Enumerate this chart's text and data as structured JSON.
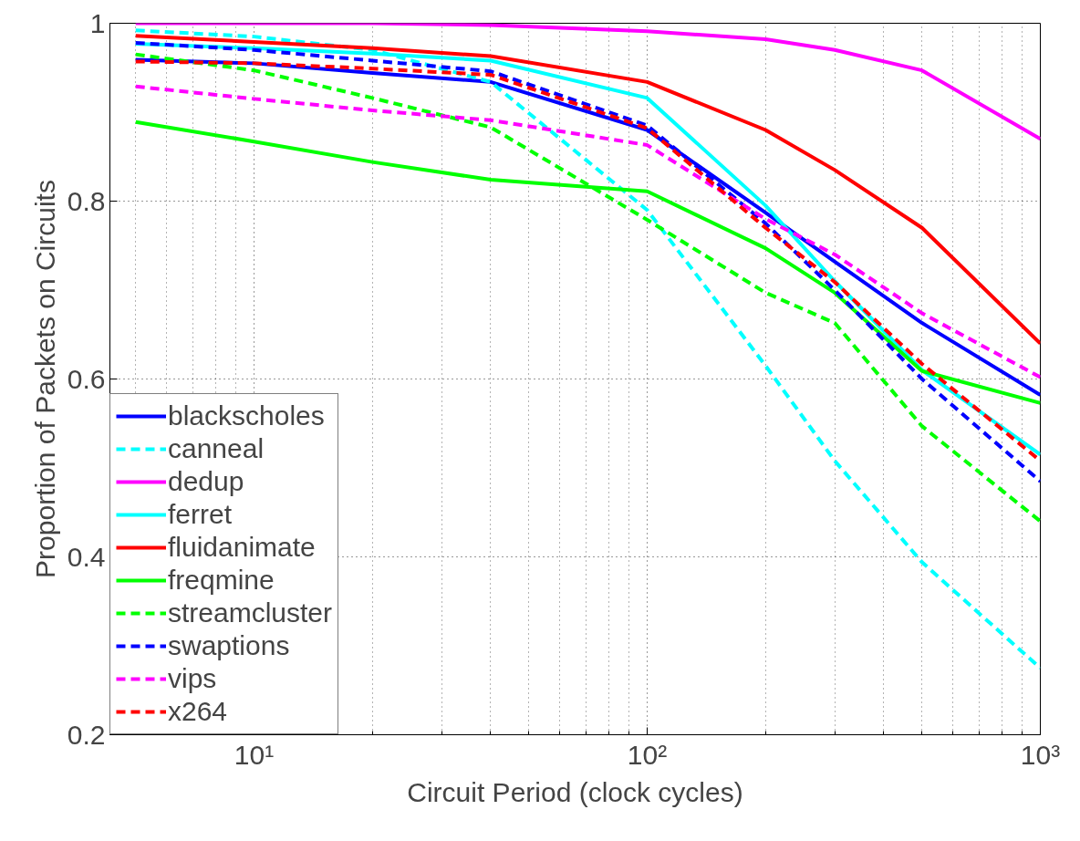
{
  "chart_data": {
    "type": "line",
    "xlabel": "Circuit Period (clock cycles)",
    "ylabel": "Proportion of Packets on Circuits",
    "x": [
      5,
      10,
      20,
      40,
      100,
      200,
      300,
      500,
      1000
    ],
    "log": "x",
    "xlim": [
      4.3,
      1000
    ],
    "xticks": [
      {
        "value": 10,
        "label": "10¹"
      },
      {
        "value": 100,
        "label": "10²"
      },
      {
        "value": 1000,
        "label": "10³"
      }
    ],
    "ylim": [
      0.2,
      1
    ],
    "yticks": [
      0.2,
      0.4,
      0.6,
      0.8,
      {
        "value": 1,
        "label": "1"
      }
    ],
    "grid": true,
    "legend": "bottom left",
    "marker": "none",
    "series": [
      {
        "name": "blackscholes",
        "color": "#0000ff",
        "line_style": "solid",
        "values": [
          0.959,
          0.955,
          0.944,
          0.934,
          0.88,
          0.787,
          0.732,
          0.663,
          0.582
        ]
      },
      {
        "name": "canneal",
        "color": "#00ffff",
        "line_style": "dashed",
        "values": [
          0.992,
          0.985,
          0.97,
          0.934,
          0.79,
          0.615,
          0.508,
          0.394,
          0.275
        ]
      },
      {
        "name": "dedup",
        "color": "#ff00ff",
        "line_style": "solid",
        "values": [
          1.0,
          1.0,
          1.0,
          0.998,
          0.991,
          0.982,
          0.97,
          0.947,
          0.87
        ]
      },
      {
        "name": "ferret",
        "color": "#00ffff",
        "line_style": "solid",
        "values": [
          0.977,
          0.972,
          0.966,
          0.958,
          0.916,
          0.795,
          0.71,
          0.61,
          0.515
        ]
      },
      {
        "name": "fluidanimate",
        "color": "#ff0000",
        "line_style": "solid",
        "values": [
          0.986,
          0.979,
          0.972,
          0.963,
          0.934,
          0.88,
          0.835,
          0.77,
          0.64
        ]
      },
      {
        "name": "freqmine",
        "color": "#00ff00",
        "line_style": "solid",
        "values": [
          0.889,
          0.867,
          0.844,
          0.824,
          0.811,
          0.747,
          0.697,
          0.609,
          0.573
        ]
      },
      {
        "name": "streamcluster",
        "color": "#00ff00",
        "line_style": "dashed",
        "values": [
          0.965,
          0.947,
          0.916,
          0.883,
          0.779,
          0.697,
          0.663,
          0.547,
          0.44
        ]
      },
      {
        "name": "swaptions",
        "color": "#0000ff",
        "line_style": "dashed",
        "values": [
          0.978,
          0.97,
          0.958,
          0.946,
          0.885,
          0.775,
          0.7,
          0.6,
          0.485
        ]
      },
      {
        "name": "vips",
        "color": "#ff00ff",
        "line_style": "dashed",
        "values": [
          0.929,
          0.915,
          0.902,
          0.891,
          0.863,
          0.78,
          0.74,
          0.674,
          0.602
        ]
      },
      {
        "name": "x264",
        "color": "#ff0000",
        "line_style": "dashed",
        "values": [
          0.957,
          0.955,
          0.949,
          0.942,
          0.882,
          0.77,
          0.709,
          0.617,
          0.508
        ]
      }
    ]
  }
}
